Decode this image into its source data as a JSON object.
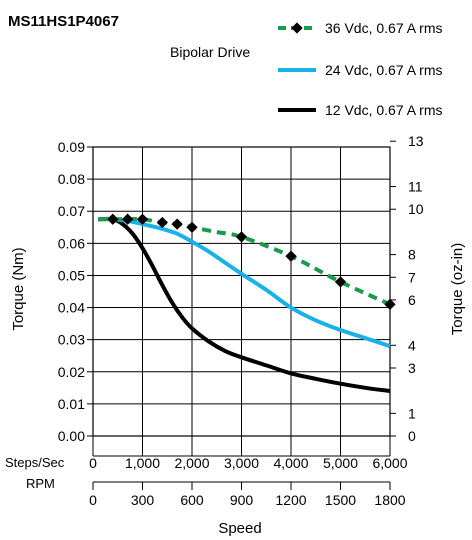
{
  "colors": {
    "series_36v": "#1a9a4b",
    "series_24v": "#1ab0e8",
    "series_12v": "#000000",
    "grid": "#000000",
    "background": "#ffffff"
  },
  "chart_data": {
    "type": "line",
    "title": "MS11HS1P4067",
    "subtitle": "Bipolar Drive",
    "xlabel": "Speed",
    "ylabel": "Torque (Nm)",
    "y2label": "Torque (oz-in)",
    "xlim": [
      0,
      1800
    ],
    "ylim": [
      0,
      0.09
    ],
    "x_rpm_ticks": [
      "0",
      "300",
      "600",
      "900",
      "1200",
      "1500",
      "1800"
    ],
    "x_steps_label": "Steps/Sec",
    "x_rpm_label": "RPM",
    "x_steps_ticks": [
      "0",
      "1,000",
      "2,000",
      "3,000",
      "4,000",
      "5,000",
      "6,000"
    ],
    "y_ticks": [
      "0.00",
      "0.01",
      "0.02",
      "0.03",
      "0.04",
      "0.05",
      "0.06",
      "0.07",
      "0.08",
      "0.09"
    ],
    "y2_ticks": [
      {
        "label": "0",
        "value": 0
      },
      {
        "label": "1",
        "value": 0.00706
      },
      {
        "label": "3",
        "value": 0.02118
      },
      {
        "label": "4",
        "value": 0.02825
      },
      {
        "label": "6",
        "value": 0.04237
      },
      {
        "label": "7",
        "value": 0.04943
      },
      {
        "label": "8",
        "value": 0.05649
      },
      {
        "label": "10",
        "value": 0.07062
      },
      {
        "label": "11",
        "value": 0.07768
      },
      {
        "label": "13",
        "value": 0.0918
      }
    ],
    "grid": true,
    "legend_position": "top-right",
    "series": [
      {
        "name": "36 Vdc, 0.67 A rms",
        "style": "dashed-diamond",
        "x": [
          30,
          120,
          210,
          300,
          420,
          510,
          600,
          750,
          900,
          1200,
          1500,
          1800
        ],
        "y": [
          0.0675,
          0.0675,
          0.0675,
          0.0675,
          0.0665,
          0.066,
          0.065,
          0.0635,
          0.062,
          0.056,
          0.048,
          0.041
        ],
        "markers_x": [
          120,
          210,
          300,
          420,
          510,
          600,
          900,
          1200,
          1500,
          1800
        ]
      },
      {
        "name": "24 Vdc, 0.67 A rms",
        "style": "solid",
        "x": [
          30,
          120,
          210,
          300,
          420,
          510,
          600,
          700,
          800,
          900,
          1050,
          1200,
          1350,
          1500,
          1650,
          1800
        ],
        "y": [
          0.0675,
          0.0675,
          0.067,
          0.066,
          0.0645,
          0.063,
          0.0605,
          0.0575,
          0.054,
          0.0505,
          0.0455,
          0.04,
          0.036,
          0.033,
          0.0305,
          0.028
        ]
      },
      {
        "name": "12 Vdc, 0.67 A rms",
        "style": "solid",
        "x": [
          30,
          120,
          180,
          240,
          300,
          360,
          420,
          480,
          540,
          600,
          700,
          800,
          900,
          1050,
          1200,
          1350,
          1500,
          1650,
          1800
        ],
        "y": [
          0.0675,
          0.0675,
          0.066,
          0.063,
          0.0585,
          0.053,
          0.047,
          0.0415,
          0.037,
          0.0335,
          0.0295,
          0.0265,
          0.0245,
          0.022,
          0.0195,
          0.0178,
          0.0163,
          0.015,
          0.014
        ]
      }
    ]
  }
}
